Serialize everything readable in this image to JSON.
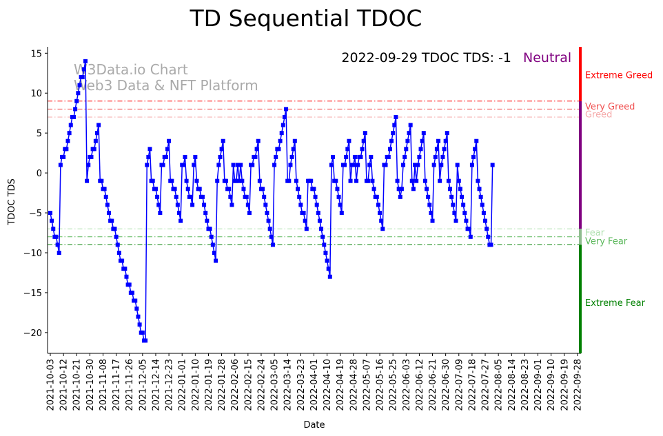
{
  "chart_data": {
    "type": "line",
    "title": "TD Sequential TDOC",
    "xlabel": "Date",
    "ylabel": "TDOC TDS",
    "ylim": [
      -22.6,
      15.8
    ],
    "xlim_days": [
      0,
      361
    ],
    "yticks": [
      -20,
      -15,
      -10,
      -5,
      0,
      5,
      10,
      15
    ],
    "xticks": [
      "2021-10-03",
      "2021-10-12",
      "2021-10-21",
      "2021-10-30",
      "2021-11-08",
      "2021-11-17",
      "2021-11-26",
      "2021-12-05",
      "2021-12-14",
      "2021-12-23",
      "2022-01-01",
      "2022-01-10",
      "2022-01-19",
      "2022-01-28",
      "2022-02-06",
      "2022-02-15",
      "2022-02-24",
      "2022-03-05",
      "2022-03-14",
      "2022-03-23",
      "2022-04-01",
      "2022-04-10",
      "2022-04-19",
      "2022-04-28",
      "2022-05-07",
      "2022-05-16",
      "2022-05-25",
      "2022-06-03",
      "2022-06-12",
      "2022-06-21",
      "2022-06-30",
      "2022-07-09",
      "2022-07-18",
      "2022-07-27",
      "2022-08-05",
      "2022-08-14",
      "2022-08-23",
      "2022-09-01",
      "2022-09-10",
      "2022-09-19",
      "2022-09-28"
    ],
    "series": [
      {
        "name": "TDS",
        "color": "#0000ff",
        "start_date": "2021-10-03",
        "step_days": 1,
        "values": [
          -5,
          -6,
          -7,
          -8,
          -8,
          -9,
          -10,
          1,
          2,
          2,
          3,
          3,
          4,
          5,
          6,
          7,
          7,
          8,
          9,
          10,
          11,
          12,
          12,
          13,
          14,
          -1,
          1,
          2,
          2,
          3,
          3,
          4,
          5,
          6,
          -1,
          -1,
          -2,
          -2,
          -3,
          -4,
          -5,
          -6,
          -6,
          -7,
          -7,
          -8,
          -9,
          -10,
          -11,
          -11,
          -12,
          -12,
          -13,
          -14,
          -14,
          -15,
          -15,
          -16,
          -16,
          -17,
          -18,
          -19,
          -20,
          -20,
          -21,
          -21,
          1,
          2,
          3,
          -1,
          -1,
          -2,
          -2,
          -3,
          -4,
          -5,
          1,
          1,
          2,
          2,
          3,
          4,
          -1,
          -1,
          -2,
          -2,
          -3,
          -4,
          -5,
          -6,
          1,
          1,
          2,
          -1,
          -2,
          -3,
          -3,
          -4,
          1,
          2,
          -1,
          -2,
          -2,
          -3,
          -3,
          -4,
          -5,
          -6,
          -7,
          -7,
          -8,
          -9,
          -10,
          -11,
          -1,
          1,
          2,
          3,
          4,
          -1,
          -1,
          -2,
          -2,
          -3,
          -4,
          1,
          -1,
          -1,
          1,
          -1,
          1,
          -1,
          -2,
          -3,
          -3,
          -4,
          -5,
          1,
          1,
          2,
          2,
          3,
          4,
          -1,
          -2,
          -2,
          -3,
          -4,
          -5,
          -6,
          -7,
          -8,
          -9,
          1,
          2,
          3,
          3,
          4,
          5,
          6,
          7,
          8,
          -1,
          -1,
          1,
          2,
          3,
          4,
          -1,
          -2,
          -3,
          -4,
          -5,
          -5,
          -6,
          -7,
          -1,
          -1,
          -1,
          -2,
          -2,
          -3,
          -4,
          -5,
          -6,
          -7,
          -8,
          -9,
          -10,
          -11,
          -12,
          -13,
          1,
          2,
          -1,
          -1,
          -2,
          -3,
          -4,
          -5,
          1,
          1,
          2,
          3,
          4,
          -1,
          1,
          1,
          2,
          -1,
          1,
          2,
          2,
          3,
          4,
          5,
          -1,
          -1,
          1,
          2,
          -1,
          -2,
          -3,
          -3,
          -4,
          -5,
          -6,
          -7,
          1,
          1,
          2,
          2,
          3,
          4,
          5,
          6,
          7,
          -1,
          -2,
          -3,
          -2,
          1,
          2,
          3,
          4,
          5,
          6,
          -1,
          -2,
          1,
          -1,
          1,
          2,
          3,
          4,
          5,
          -1,
          -2,
          -3,
          -4,
          -5,
          -6,
          1,
          2,
          3,
          4,
          -1,
          1,
          2,
          3,
          4,
          5,
          -1,
          -2,
          -3,
          -4,
          -5,
          -6,
          1,
          -1,
          -2,
          -3,
          -4,
          -5,
          -6,
          -7,
          -7,
          -8,
          1,
          2,
          3,
          4,
          -1,
          -2,
          -3,
          -4,
          -5,
          -6,
          -7,
          -8,
          -9,
          -9,
          1
        ]
      }
    ],
    "hlines": [
      {
        "name": "Very Greed",
        "y": 9,
        "color": "#ff0000"
      },
      {
        "name": "Greed",
        "y": 8,
        "color": "#f05050"
      },
      {
        "name": "Greed",
        "y": 7,
        "color": "#f5aaaa"
      },
      {
        "name": "Fear",
        "y": -7,
        "color": "#aee0ae"
      },
      {
        "name": "Very Fear",
        "y": -8,
        "color": "#5cb85c"
      },
      {
        "name": "Extreme Fear",
        "y": -9,
        "color": "#008000"
      }
    ],
    "zone_bar": [
      {
        "from": 9,
        "to": 15.8,
        "color": "#ff0000"
      },
      {
        "from": -7,
        "to": 9,
        "color": "#800080"
      },
      {
        "from": -9,
        "to": -7,
        "color": "#8fbc8f"
      },
      {
        "from": -22.6,
        "to": -9,
        "color": "#008000"
      }
    ],
    "zone_labels": [
      {
        "text": "Extreme Greed",
        "y": 12.3,
        "color": "#ff0000"
      },
      {
        "text": "Very Greed",
        "y": 8.4,
        "color": "#f05050"
      },
      {
        "text": "Greed",
        "y": 7.4,
        "color": "#f5aaaa"
      },
      {
        "text": "Fear",
        "y": -7.4,
        "color": "#aee0ae"
      },
      {
        "text": "Very Fear",
        "y": -8.5,
        "color": "#5cb85c"
      },
      {
        "text": "Extreme Fear",
        "y": -16.2,
        "color": "#008000"
      }
    ],
    "annotation": {
      "date_label": "2022-09-29 TDOC TDS: -1",
      "status": "Neutral",
      "status_color": "#800080"
    },
    "watermark": [
      "W3Data.io Chart",
      "Web3 Data & NFT Platform"
    ]
  }
}
